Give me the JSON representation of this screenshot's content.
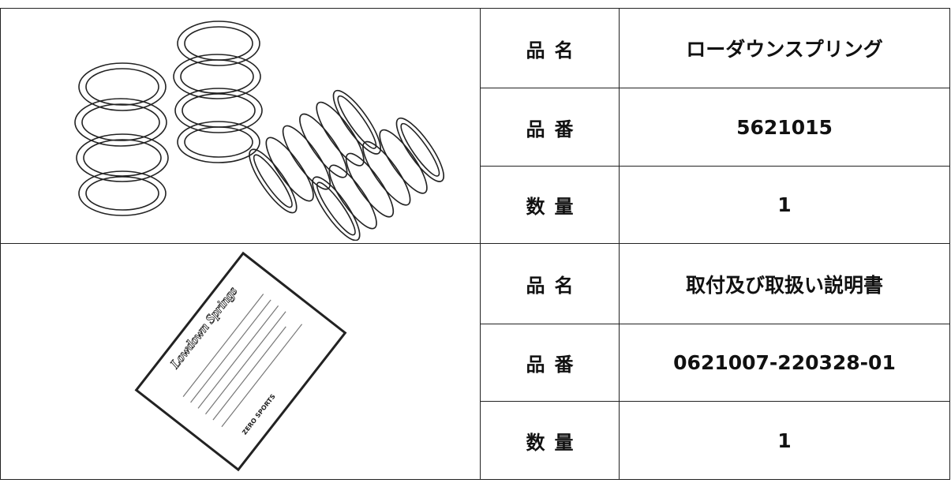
{
  "sections": [
    {
      "items": [
        {
          "label": "品名",
          "value": "ローダウンスプリング"
        },
        {
          "label": "品番",
          "value": "5621015"
        },
        {
          "label": "数量",
          "value": "1"
        }
      ]
    },
    {
      "items": [
        {
          "label": "品名",
          "value": "取付及び取扱い説明書"
        },
        {
          "label": "品番",
          "value": "0621007-220328-01"
        },
        {
          "label": "数量",
          "value": "1"
        }
      ]
    }
  ],
  "manual": {
    "title": "Lowdown Springs",
    "brand": "ZERO SPORTS"
  }
}
